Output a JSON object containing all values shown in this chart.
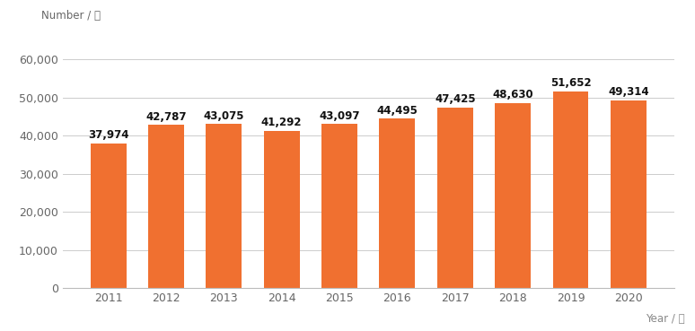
{
  "years": [
    "2011",
    "2012",
    "2013",
    "2014",
    "2015",
    "2016",
    "2017",
    "2018",
    "2019",
    "2020"
  ],
  "values": [
    37974,
    42787,
    43075,
    41292,
    43097,
    44495,
    47425,
    48630,
    51652,
    49314
  ],
  "bar_color": "#f07030",
  "background_color": "#ffffff",
  "ylabel": "Number / 件",
  "xlabel": "Year / 年",
  "ylim": [
    0,
    60000
  ],
  "yticks": [
    0,
    10000,
    20000,
    30000,
    40000,
    50000,
    60000
  ],
  "axis_label_fontsize": 8.5,
  "tick_fontsize": 9,
  "bar_label_fontsize": 8.5,
  "grid_color": "#cccccc",
  "grid_linewidth": 0.7,
  "label_color": "#888888"
}
